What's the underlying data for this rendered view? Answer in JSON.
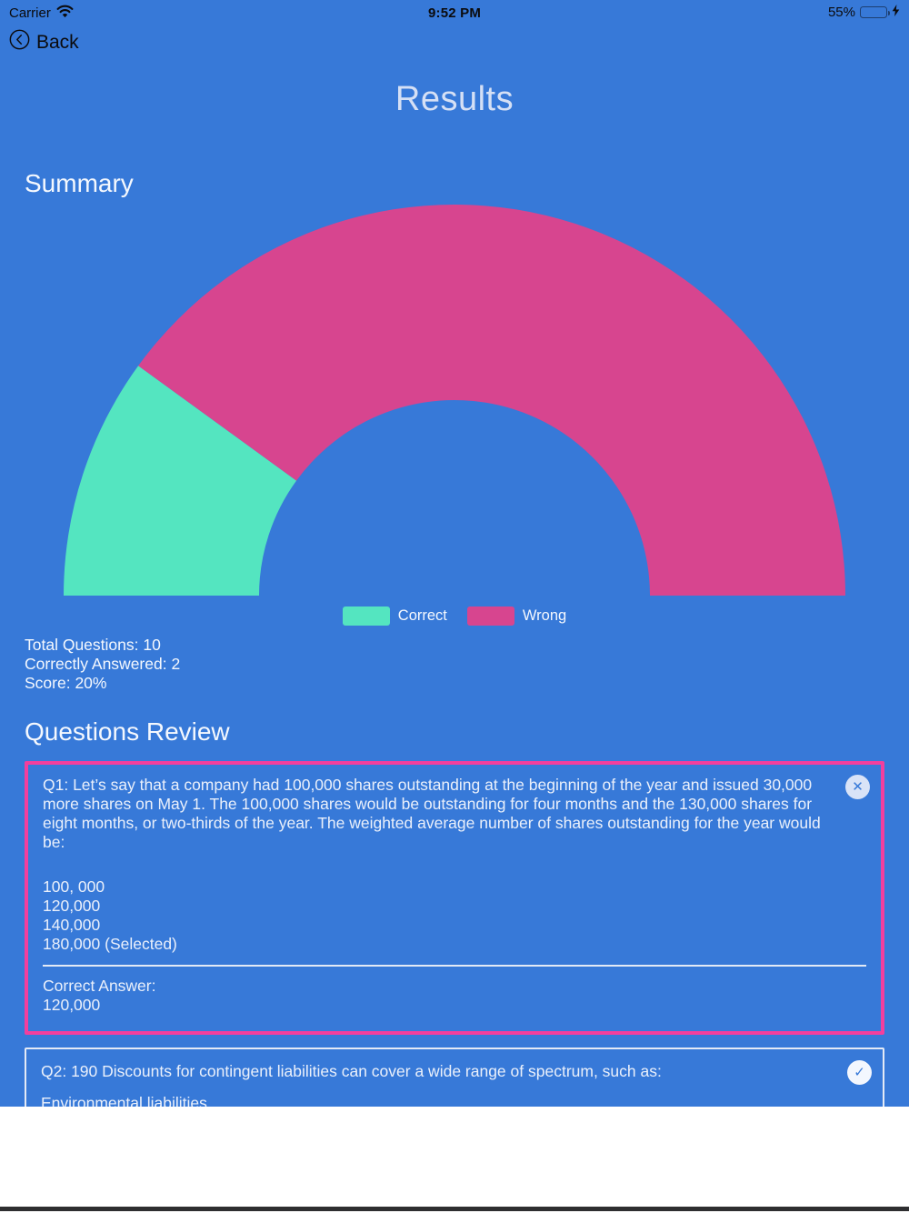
{
  "status_bar": {
    "carrier": "Carrier",
    "time": "9:52 PM",
    "battery_percent": "55%",
    "battery_level": 0.55,
    "charging": true
  },
  "nav": {
    "back_label": "Back"
  },
  "page": {
    "title": "Results"
  },
  "summary": {
    "heading": "Summary",
    "stats": {
      "total": "Total Questions: 10",
      "correct": "Correctly Answered: 2",
      "score": "Score: 20%"
    }
  },
  "chart_data": {
    "type": "pie",
    "variant": "semicircle-donut",
    "title": "",
    "categories": [
      "Correct",
      "Wrong"
    ],
    "series": [
      {
        "name": "Correct",
        "value": 2,
        "color": "#54E5C0"
      },
      {
        "name": "Wrong",
        "value": 8,
        "color": "#D7458F"
      }
    ],
    "total": 10,
    "legend_position": "bottom-center",
    "geometry": {
      "start_angle_deg": 180,
      "end_angle_deg": 0,
      "inner_radius_ratio": 0.5
    }
  },
  "review": {
    "heading": "Questions Review",
    "questions": [
      {
        "id": "Q1",
        "question": "Q1: Let’s say that a company had 100,000 shares outstanding at the beginning of the year and issued 30,000 more shares on May 1. The 100,000 shares would be outstanding for four months and the 130,000 shares for eight months, or two-thirds of the year. The weighted average number of shares outstanding for the year would be:",
        "options": [
          "100, 000",
          "120,000",
          "140,000",
          "180,000 (Selected)"
        ],
        "correct_answer_label": "Correct Answer:",
        "correct_answer": "120,000",
        "result": "wrong"
      },
      {
        "id": "Q2",
        "question": "Q2: 190 Discounts for contingent liabilities can cover a wide range of spectrum, such as:",
        "options": [
          "Environmental liabilities"
        ],
        "result": "correct"
      }
    ]
  },
  "colors": {
    "background": "#3779D8",
    "correct": "#54E5C0",
    "wrong": "#D7458F",
    "wrong_card_border": "#F23F9E",
    "title_text": "#D5E0F5",
    "body_text": "#F4F8FE"
  }
}
